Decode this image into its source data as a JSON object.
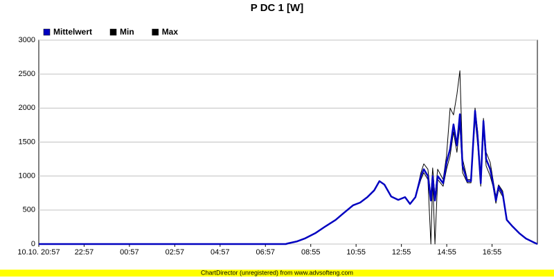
{
  "chart_data": {
    "type": "line",
    "title": "P DC 1 [W]",
    "x": [
      0,
      10.9,
      11.0,
      11.4,
      11.73,
      12.2,
      12.65,
      13.1,
      13.4,
      13.87,
      14.18,
      14.5,
      14.8,
      15.03,
      15.25,
      15.55,
      15.86,
      16.16,
      16.38,
      16.62,
      16.86,
      16.99,
      17.17,
      17.3,
      17.38,
      17.48,
      17.6,
      17.84,
      17.99,
      18.15,
      18.3,
      18.45,
      18.58,
      18.7,
      18.91,
      19.07,
      19.25,
      19.37,
      19.5,
      19.62,
      19.74,
      19.92,
      20.04,
      20.17,
      20.29,
      20.47,
      20.65,
      20.9,
      21.2,
      21.5,
      21.81,
      22
    ],
    "series": [
      {
        "name": "Mittelwert",
        "color": "#0000c0",
        "values": [
          0,
          0,
          10,
          40,
          80,
          160,
          260,
          355,
          440,
          570,
          610,
          690,
          790,
          925,
          875,
          700,
          650,
          690,
          590,
          690,
          1000,
          1100,
          1000,
          640,
          1000,
          640,
          1000,
          895,
          1200,
          1400,
          1760,
          1450,
          1910,
          1150,
          925,
          925,
          1960,
          1555,
          895,
          1810,
          1250,
          1100,
          895,
          640,
          845,
          740,
          355,
          260,
          160,
          80,
          30,
          0
        ]
      },
      {
        "name": "Min",
        "color": "#000000",
        "values": [
          0,
          0,
          10,
          40,
          80,
          160,
          260,
          355,
          440,
          570,
          610,
          690,
          790,
          925,
          875,
          700,
          650,
          690,
          590,
          690,
          950,
          1050,
          950,
          0,
          950,
          0,
          950,
          850,
          1100,
          1300,
          1650,
          1350,
          1750,
          1050,
          900,
          900,
          1850,
          1450,
          850,
          1700,
          1150,
          1000,
          850,
          600,
          800,
          700,
          355,
          260,
          160,
          80,
          30,
          0
        ]
      },
      {
        "name": "Max",
        "color": "#000000",
        "values": [
          0,
          0,
          10,
          40,
          80,
          160,
          260,
          355,
          440,
          570,
          610,
          690,
          790,
          925,
          875,
          700,
          650,
          690,
          590,
          690,
          1050,
          1180,
          1100,
          700,
          1120,
          700,
          1100,
          950,
          1300,
          2000,
          1900,
          2200,
          2550,
          1250,
          950,
          950,
          2000,
          1650,
          950,
          1850,
          1350,
          1200,
          950,
          700,
          870,
          780,
          355,
          260,
          160,
          80,
          30,
          0
        ]
      }
    ],
    "xlim": [
      0,
      22
    ],
    "xticks": [
      {
        "value": 0,
        "label": "10.10. 20:57"
      },
      {
        "value": 2,
        "label": "22:57"
      },
      {
        "value": 4,
        "label": "00:57"
      },
      {
        "value": 6,
        "label": "02:57"
      },
      {
        "value": 8,
        "label": "04:57"
      },
      {
        "value": 10,
        "label": "06:57"
      },
      {
        "value": 12,
        "label": "08:55"
      },
      {
        "value": 14,
        "label": "10:55"
      },
      {
        "value": 16,
        "label": "12:55"
      },
      {
        "value": 18,
        "label": "14:55"
      },
      {
        "value": 20,
        "label": "16:55"
      }
    ],
    "ylim": [
      0,
      3000
    ],
    "yticks": [
      0,
      500,
      1000,
      1500,
      2000,
      2500,
      3000
    ],
    "grid": true,
    "footer": "ChartDirector (unregistered) from www.advsofteng.com"
  }
}
